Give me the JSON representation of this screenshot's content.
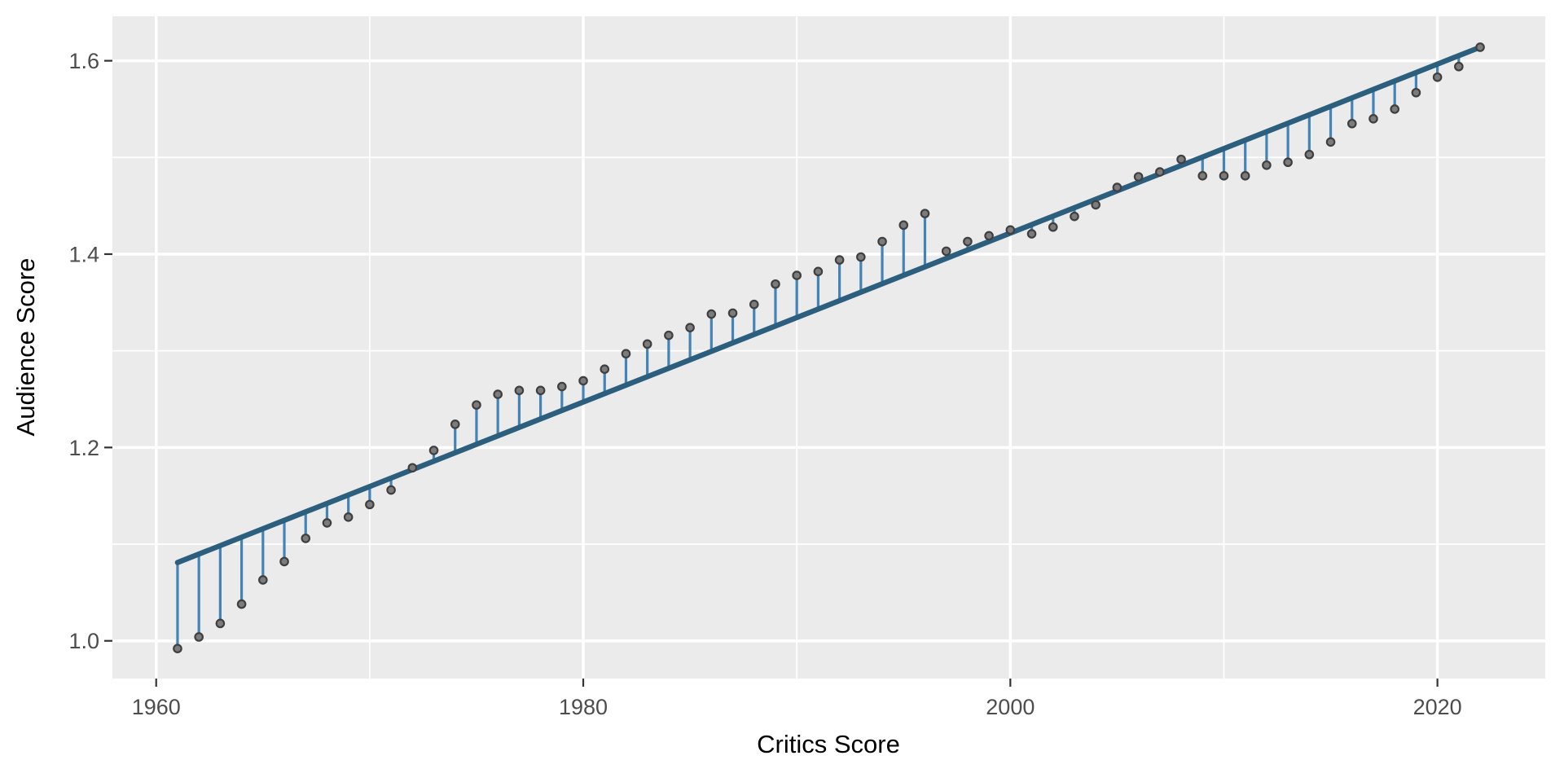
{
  "chart_data": {
    "type": "scatter",
    "title": "",
    "xlabel": "Critics Score",
    "ylabel": "Audience Score",
    "legend": "none",
    "grid": true,
    "panel_theme": "ggplot-gray",
    "x_ticks": [
      1960,
      1980,
      2000,
      2020
    ],
    "x_tick_labels": [
      "1960",
      "1980",
      "2000",
      "2020"
    ],
    "x_minor_ticks": [
      1970,
      1990,
      2010
    ],
    "y_ticks": [
      1.0,
      1.2,
      1.4,
      1.6
    ],
    "y_tick_labels": [
      "1.0",
      "1.2",
      "1.4",
      "1.6"
    ],
    "y_minor_ticks": [
      1.1,
      1.3,
      1.5
    ],
    "xlim": [
      1957.95,
      2025.05
    ],
    "ylim": [
      0.961,
      1.646
    ],
    "trend_line": {
      "x1": 1961,
      "y1": 1.081,
      "x2": 2022,
      "y2": 1.614
    },
    "points": [
      [
        1961,
        0.992
      ],
      [
        1962,
        1.004
      ],
      [
        1963,
        1.018
      ],
      [
        1964,
        1.038
      ],
      [
        1965,
        1.063
      ],
      [
        1966,
        1.082
      ],
      [
        1967,
        1.106
      ],
      [
        1968,
        1.122
      ],
      [
        1969,
        1.128
      ],
      [
        1970,
        1.141
      ],
      [
        1971,
        1.156
      ],
      [
        1972,
        1.179
      ],
      [
        1973,
        1.197
      ],
      [
        1974,
        1.224
      ],
      [
        1975,
        1.244
      ],
      [
        1976,
        1.255
      ],
      [
        1977,
        1.259
      ],
      [
        1978,
        1.259
      ],
      [
        1979,
        1.263
      ],
      [
        1980,
        1.269
      ],
      [
        1981,
        1.281
      ],
      [
        1982,
        1.297
      ],
      [
        1983,
        1.307
      ],
      [
        1984,
        1.316
      ],
      [
        1985,
        1.324
      ],
      [
        1986,
        1.338
      ],
      [
        1987,
        1.339
      ],
      [
        1988,
        1.348
      ],
      [
        1989,
        1.369
      ],
      [
        1990,
        1.378
      ],
      [
        1991,
        1.382
      ],
      [
        1992,
        1.394
      ],
      [
        1993,
        1.397
      ],
      [
        1994,
        1.413
      ],
      [
        1995,
        1.43
      ],
      [
        1996,
        1.442
      ],
      [
        1997,
        1.403
      ],
      [
        1998,
        1.413
      ],
      [
        1999,
        1.419
      ],
      [
        2000,
        1.425
      ],
      [
        2001,
        1.421
      ],
      [
        2002,
        1.428
      ],
      [
        2003,
        1.439
      ],
      [
        2004,
        1.451
      ],
      [
        2005,
        1.469
      ],
      [
        2006,
        1.48
      ],
      [
        2007,
        1.485
      ],
      [
        2008,
        1.498
      ],
      [
        2009,
        1.481
      ],
      [
        2010,
        1.481
      ],
      [
        2011,
        1.481
      ],
      [
        2012,
        1.492
      ],
      [
        2013,
        1.495
      ],
      [
        2014,
        1.503
      ],
      [
        2015,
        1.516
      ],
      [
        2016,
        1.535
      ],
      [
        2017,
        1.54
      ],
      [
        2018,
        1.55
      ],
      [
        2019,
        1.567
      ],
      [
        2020,
        1.583
      ],
      [
        2021,
        1.594
      ],
      [
        2022,
        1.614
      ]
    ],
    "colors": {
      "panel_background": "#EBEBEB",
      "grid": "#FFFFFF",
      "trend_line": "#2C5F7E",
      "segment": "#4483B5",
      "point_fill": "#7C7C7C",
      "point_stroke": "#3F3F3F",
      "tick_text": "#4D4D4D",
      "axis_title": "#000000",
      "tick_mark": "#333333"
    }
  }
}
